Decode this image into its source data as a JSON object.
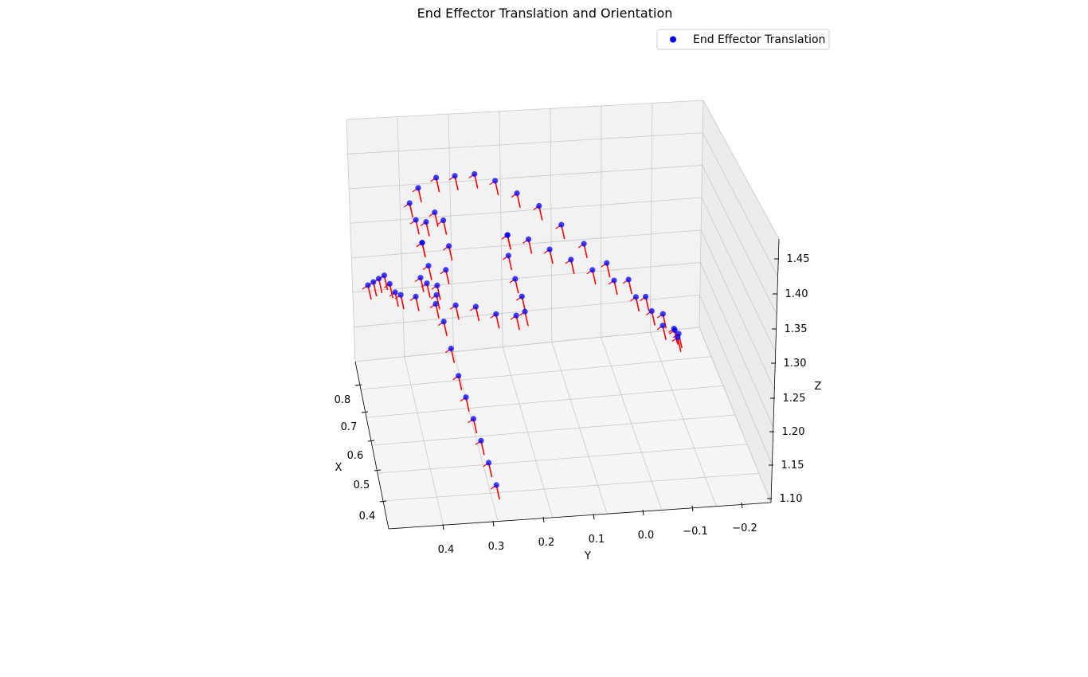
{
  "chart_data": {
    "type": "scatter",
    "title": "End Effector Translation and Orientation",
    "xlabel": "X",
    "ylabel": "Y",
    "zlabel": "Z",
    "x_ticks": [
      "0.8",
      "0.7",
      "0.6",
      "0.5",
      "0.4"
    ],
    "y_ticks": [
      "0.4",
      "0.3",
      "0.2",
      "0.1",
      "0.0",
      "−0.1",
      "−0.2"
    ],
    "z_ticks": [
      "1.45",
      "1.40",
      "1.35",
      "1.30",
      "1.25",
      "1.20",
      "1.15",
      "1.10"
    ],
    "xlim": [
      0.35,
      0.85
    ],
    "ylim": [
      -0.25,
      0.5
    ],
    "zlim": [
      1.1,
      1.47
    ],
    "grid": true,
    "legend_position": "top-right",
    "series": [
      {
        "name": "End Effector Translation",
        "marker_color": "#0000ff",
        "arrow_color": "#ff0000",
        "points": [
          {
            "x": 0.4,
            "y": 0.28,
            "z": 1.13
          },
          {
            "x": 0.43,
            "y": 0.29,
            "z": 1.15
          },
          {
            "x": 0.46,
            "y": 0.3,
            "z": 1.17
          },
          {
            "x": 0.49,
            "y": 0.31,
            "z": 1.19
          },
          {
            "x": 0.52,
            "y": 0.32,
            "z": 1.21
          },
          {
            "x": 0.55,
            "y": 0.33,
            "z": 1.23
          },
          {
            "x": 0.58,
            "y": 0.34,
            "z": 1.26
          },
          {
            "x": 0.61,
            "y": 0.35,
            "z": 1.29
          },
          {
            "x": 0.64,
            "y": 0.36,
            "z": 1.32
          },
          {
            "x": 0.68,
            "y": 0.37,
            "z": 1.35
          },
          {
            "x": 0.7,
            "y": 0.38,
            "z": 1.38
          },
          {
            "x": 0.72,
            "y": 0.39,
            "z": 1.41
          },
          {
            "x": 0.74,
            "y": 0.4,
            "z": 1.43
          },
          {
            "x": 0.75,
            "y": 0.38,
            "z": 1.45
          },
          {
            "x": 0.76,
            "y": 0.34,
            "z": 1.46
          },
          {
            "x": 0.76,
            "y": 0.3,
            "z": 1.46
          },
          {
            "x": 0.75,
            "y": 0.26,
            "z": 1.465
          },
          {
            "x": 0.73,
            "y": 0.22,
            "z": 1.46
          },
          {
            "x": 0.7,
            "y": 0.18,
            "z": 1.45
          },
          {
            "x": 0.67,
            "y": 0.14,
            "z": 1.44
          },
          {
            "x": 0.64,
            "y": 0.1,
            "z": 1.42
          },
          {
            "x": 0.61,
            "y": 0.06,
            "z": 1.4
          },
          {
            "x": 0.58,
            "y": 0.02,
            "z": 1.38
          },
          {
            "x": 0.56,
            "y": -0.02,
            "z": 1.36
          },
          {
            "x": 0.54,
            "y": -0.05,
            "z": 1.34
          },
          {
            "x": 0.52,
            "y": -0.08,
            "z": 1.32
          },
          {
            "x": 0.51,
            "y": -0.1,
            "z": 1.3
          },
          {
            "x": 0.52,
            "y": -0.11,
            "z": 1.28
          },
          {
            "x": 0.55,
            "y": -0.12,
            "z": 1.27
          },
          {
            "x": 0.58,
            "y": -0.12,
            "z": 1.26
          },
          {
            "x": 0.7,
            "y": 0.2,
            "z": 1.38
          },
          {
            "x": 0.68,
            "y": 0.16,
            "z": 1.38
          },
          {
            "x": 0.66,
            "y": 0.12,
            "z": 1.37
          },
          {
            "x": 0.64,
            "y": 0.08,
            "z": 1.36
          },
          {
            "x": 0.62,
            "y": 0.04,
            "z": 1.35
          },
          {
            "x": 0.6,
            "y": 0.0,
            "z": 1.34
          },
          {
            "x": 0.58,
            "y": -0.04,
            "z": 1.32
          },
          {
            "x": 0.57,
            "y": -0.07,
            "z": 1.3
          },
          {
            "x": 0.56,
            "y": -0.09,
            "z": 1.28
          },
          {
            "x": 0.7,
            "y": 0.2,
            "z": 1.38
          },
          {
            "x": 0.69,
            "y": 0.2,
            "z": 1.35
          },
          {
            "x": 0.67,
            "y": 0.19,
            "z": 1.32
          },
          {
            "x": 0.65,
            "y": 0.18,
            "z": 1.3
          },
          {
            "x": 0.62,
            "y": 0.18,
            "z": 1.29
          },
          {
            "x": 0.61,
            "y": 0.2,
            "z": 1.29
          },
          {
            "x": 0.62,
            "y": 0.24,
            "z": 1.29
          },
          {
            "x": 0.63,
            "y": 0.28,
            "z": 1.3
          },
          {
            "x": 0.64,
            "y": 0.32,
            "z": 1.3
          },
          {
            "x": 0.65,
            "y": 0.36,
            "z": 1.3
          },
          {
            "x": 0.66,
            "y": 0.4,
            "z": 1.31
          },
          {
            "x": 0.67,
            "y": 0.43,
            "z": 1.31
          },
          {
            "x": 0.7,
            "y": 0.38,
            "z": 1.38
          },
          {
            "x": 0.71,
            "y": 0.37,
            "z": 1.41
          },
          {
            "x": 0.72,
            "y": 0.35,
            "z": 1.42
          },
          {
            "x": 0.73,
            "y": 0.33,
            "z": 1.4
          },
          {
            "x": 0.72,
            "y": 0.32,
            "z": 1.36
          },
          {
            "x": 0.7,
            "y": 0.33,
            "z": 1.33
          },
          {
            "x": 0.69,
            "y": 0.35,
            "z": 1.31
          },
          {
            "x": 0.7,
            "y": 0.37,
            "z": 1.31
          },
          {
            "x": 0.72,
            "y": 0.38,
            "z": 1.31
          },
          {
            "x": 0.68,
            "y": 0.44,
            "z": 1.31
          },
          {
            "x": 0.69,
            "y": 0.45,
            "z": 1.32
          },
          {
            "x": 0.7,
            "y": 0.46,
            "z": 1.33
          },
          {
            "x": 0.71,
            "y": 0.47,
            "z": 1.32
          },
          {
            "x": 0.72,
            "y": 0.48,
            "z": 1.31
          },
          {
            "x": 0.73,
            "y": 0.49,
            "z": 1.3
          }
        ]
      }
    ]
  },
  "legend": {
    "label": "End Effector Translation"
  }
}
